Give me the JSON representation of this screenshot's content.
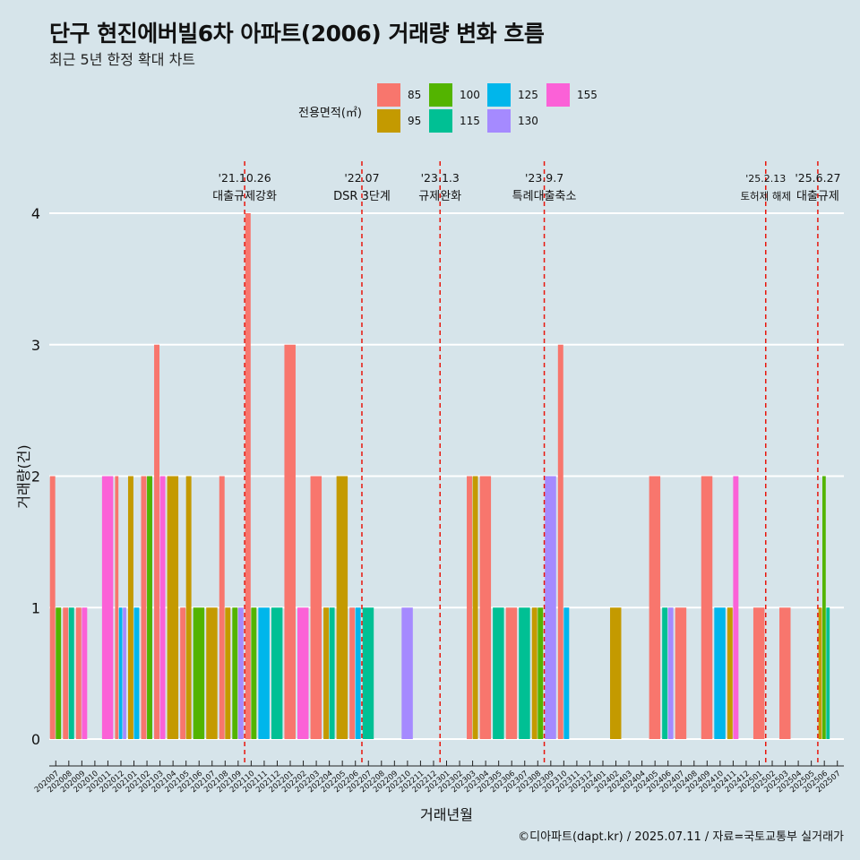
{
  "header": {
    "title": "단구 현진에버빌6차 아파트(2006) 거래량 변화 흐름",
    "subtitle": "최근 5년 한정 확대 차트"
  },
  "legend": {
    "title": "전용면적(㎡)",
    "items": [
      {
        "label": "85",
        "color": "#f8766d"
      },
      {
        "label": "95",
        "color": "#c49a00"
      },
      {
        "label": "100",
        "color": "#53b400"
      },
      {
        "label": "115",
        "color": "#00c094"
      },
      {
        "label": "125",
        "color": "#00b6eb"
      },
      {
        "label": "130",
        "color": "#a58aff"
      },
      {
        "label": "155",
        "color": "#fb61d7"
      }
    ]
  },
  "footer": {
    "credit": "©디아파트(dapt.kr) / 2025.07.11 / 자료=국토교통부 실거래가"
  },
  "chart_data": {
    "type": "bar",
    "title": "단구 현진에버빌6차 아파트(2006) 거래량 변화 흐름",
    "xlabel": "거래년월",
    "ylabel": "거래량(건)",
    "ylim": [
      0,
      4
    ],
    "yticks": [
      0,
      1,
      2,
      3,
      4
    ],
    "categories": [
      "202007",
      "202008",
      "202009",
      "202010",
      "202011",
      "202012",
      "202101",
      "202102",
      "202103",
      "202104",
      "202105",
      "202106",
      "202107",
      "202108",
      "202109",
      "202110",
      "202111",
      "202112",
      "202201",
      "202202",
      "202203",
      "202204",
      "202205",
      "202206",
      "202207",
      "202208",
      "202209",
      "202210",
      "202211",
      "202212",
      "202301",
      "202302",
      "202303",
      "202304",
      "202305",
      "202306",
      "202307",
      "202308",
      "202309",
      "202310",
      "202311",
      "202312",
      "202401",
      "202402",
      "202403",
      "202404",
      "202405",
      "202406",
      "202407",
      "202408",
      "202409",
      "202410",
      "202411",
      "202412",
      "202501",
      "202502",
      "202503",
      "202504",
      "202505",
      "202506",
      "202507"
    ],
    "series": [
      {
        "name": "85",
        "values": {
          "202007": 2,
          "202008": 1,
          "202009": 1,
          "202012": 2,
          "202102": 2,
          "202103": 3,
          "202105": 1,
          "202108": 2,
          "202110": 4,
          "202201": 3,
          "202203": 2,
          "202206": 1,
          "202303": 2,
          "202304": 2,
          "202306": 1,
          "202310": 3,
          "202405": 2,
          "202407": 1,
          "202409": 2,
          "202501": 1,
          "202503": 1
        }
      },
      {
        "name": "95",
        "values": {
          "202101": 2,
          "202104": 2,
          "202105": 2,
          "202107": 1,
          "202108": 1,
          "202204": 1,
          "202205": 2,
          "202303": 2,
          "202308": 1,
          "202402": 1,
          "202411": 1,
          "202506": 1
        }
      },
      {
        "name": "100",
        "values": {
          "202007": 1,
          "202102": 2,
          "202106": 1,
          "202109": 1,
          "202110": 1,
          "202308": 1,
          "202506": 2
        }
      },
      {
        "name": "115",
        "values": {
          "202008": 1,
          "202112": 1,
          "202204": 1,
          "202207": 1,
          "202305": 1,
          "202307": 1,
          "202406": 1,
          "202506": 1
        }
      },
      {
        "name": "125",
        "values": {
          "202012": 1,
          "202101": 1,
          "202111": 1,
          "202206": 1,
          "202310": 1,
          "202410": 1
        }
      },
      {
        "name": "130",
        "values": {
          "202012": 1,
          "202109": 1,
          "202210": 1,
          "202309": 2,
          "202406": 1
        }
      },
      {
        "name": "155",
        "values": {
          "202009": 1,
          "202011": 2,
          "202103": 2,
          "202202": 1,
          "202411": 2
        }
      }
    ],
    "events": [
      {
        "date": "'21.10.26",
        "label": "대출규제강화",
        "month": "202110"
      },
      {
        "date": "'22.07",
        "label": "DSR 3단계",
        "month": "202207"
      },
      {
        "date": "'23.1.3",
        "label": "규제완화",
        "month": "202301"
      },
      {
        "date": "'23.9.7",
        "label": "특례대출축소",
        "month": "202309"
      },
      {
        "date": "'25.2.13",
        "label": "토허제 해제",
        "month": "202502"
      },
      {
        "date": "'25.6.27",
        "label": "대출규제",
        "month": "202506"
      }
    ]
  }
}
